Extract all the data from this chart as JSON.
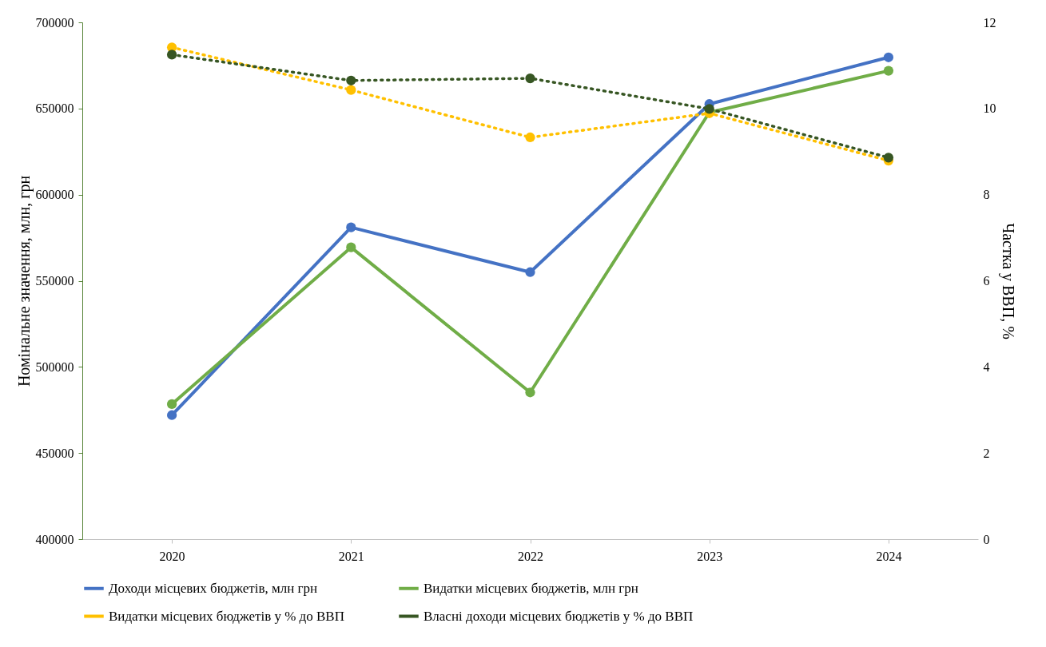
{
  "chart_data": {
    "type": "line",
    "categories": [
      "2020",
      "2021",
      "2022",
      "2023",
      "2024"
    ],
    "ylabel": "Номінальне значення, млн, грн",
    "y2label": "Частка у ВВП, %",
    "ylim": [
      400000,
      700000
    ],
    "yticks": [
      400000,
      450000,
      500000,
      550000,
      600000,
      650000,
      700000
    ],
    "y2lim": [
      0,
      12
    ],
    "y2ticks": [
      0,
      2,
      4,
      6,
      8,
      10,
      12
    ],
    "grid": false,
    "legend": "bottom",
    "marker": "circle",
    "series": [
      {
        "name": "Доходи місцевих бюджетів, млн грн",
        "color": "#4472c4",
        "axis": "y",
        "line_style": "solid",
        "values": [
          472000,
          581000,
          555000,
          652600,
          679700
        ]
      },
      {
        "name": "Видатки місцевих бюджетів, млн грн",
        "color": "#70ad47",
        "axis": "y",
        "line_style": "solid",
        "values": [
          478400,
          569400,
          485200,
          647700,
          671900
        ]
      },
      {
        "name": "Видатки місцевих бюджетів у % до ВВП",
        "color": "#ffc000",
        "axis": "y2",
        "line_style": "dotted",
        "values": [
          11.42,
          10.43,
          9.33,
          9.89,
          8.79
        ]
      },
      {
        "name": "Власні доходи місцевих бюджетів у % до ВВП",
        "color": "#375623",
        "axis": "y2",
        "line_style": "dotted",
        "values": [
          11.25,
          10.65,
          10.7,
          9.99,
          8.86
        ]
      }
    ]
  }
}
